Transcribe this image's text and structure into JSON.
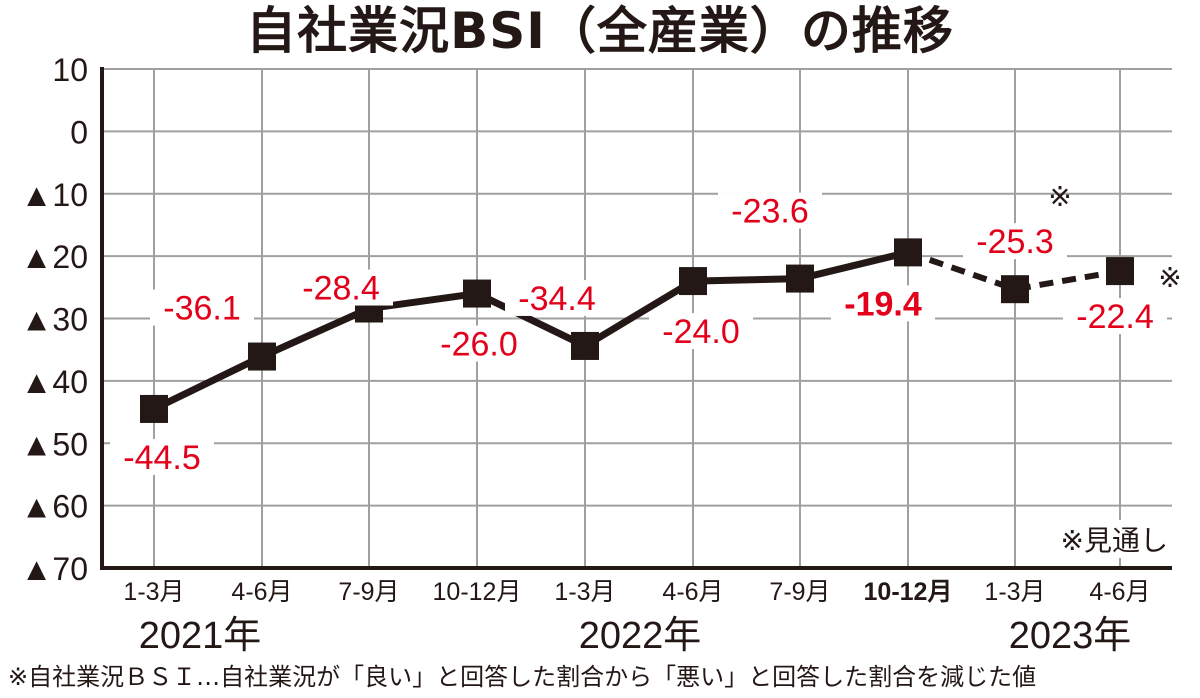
{
  "title": "自社業況BSI（全産業）の推移",
  "footnote": "※自社業況ＢＳＩ…自社業況が「良い」と回答した割合から「悪い」と回答した割合を減じた値",
  "forecast_note": "※見通し",
  "forecast_marker": "※",
  "colors": {
    "line": "#231815",
    "label": "#e3001b",
    "grid": "#a0a0a0",
    "axis": "#231815"
  },
  "chart_data": {
    "type": "line",
    "title": "自社業況BSI（全産業）の推移",
    "xlabel": "",
    "ylabel": "",
    "ylim": [
      -70,
      10
    ],
    "y_ticks": [
      10,
      0,
      -10,
      -20,
      -30,
      -40,
      -50,
      -60,
      -70
    ],
    "y_tick_labels": [
      "10",
      "0",
      "▲10",
      "▲20",
      "▲30",
      "▲40",
      "▲50",
      "▲60",
      "▲70"
    ],
    "categories": [
      "1-3月",
      "4-6月",
      "7-9月",
      "10-12月",
      "1-3月",
      "4-6月",
      "7-9月",
      "10-12月",
      "1-3月",
      "4-6月"
    ],
    "years": [
      {
        "label": "2021年",
        "start_index": 0
      },
      {
        "label": "2022年",
        "start_index": 4
      },
      {
        "label": "2023年",
        "start_index": 8
      }
    ],
    "series": [
      {
        "name": "自社業況BSI（全産業）",
        "values": [
          -44.5,
          -36.1,
          -28.4,
          -26.0,
          -34.4,
          -24.0,
          -23.6,
          -19.4,
          -25.3,
          -22.4
        ],
        "labels": [
          "-44.5",
          "-36.1",
          "-28.4",
          "-26.0",
          "-34.4",
          "-24.0",
          "-23.6",
          "-19.4",
          "-25.3",
          "-22.4"
        ],
        "forecast_from_index": 8,
        "highlight_index": 7
      }
    ],
    "grid": true,
    "legend": "none",
    "annotations": [
      "※ (forecast) on 2023 1-3月 and 4-6月",
      "※見通し"
    ]
  }
}
